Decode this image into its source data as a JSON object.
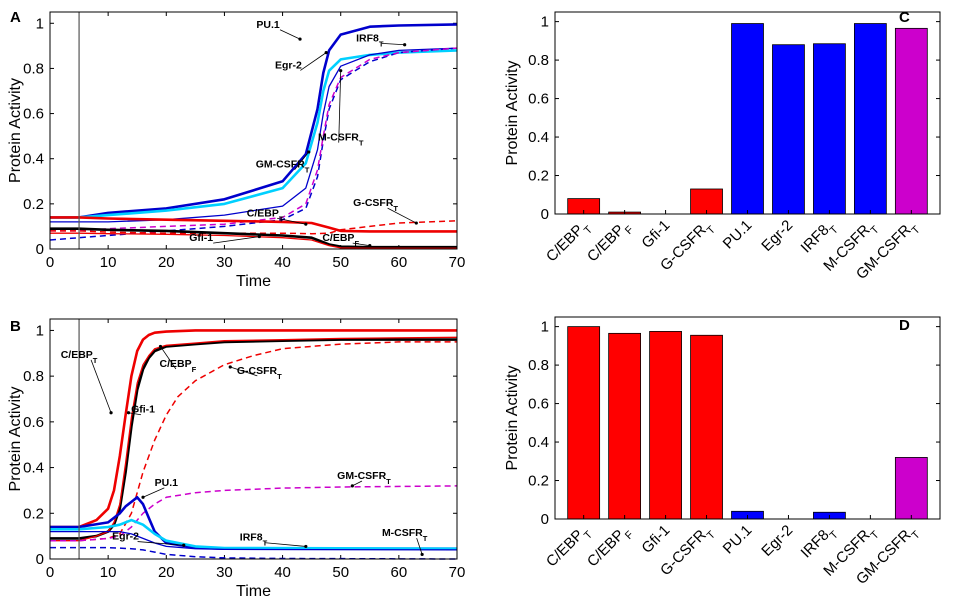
{
  "chart_data": [
    {
      "id": "A",
      "type": "line",
      "letter": "A",
      "xlabel": "Time",
      "ylabel": "Protein Activity",
      "xlim": [
        0,
        70
      ],
      "ylim": [
        0,
        1.05
      ],
      "xticks": [
        "0",
        "10",
        "20",
        "30",
        "40",
        "50",
        "60",
        "70"
      ],
      "yticks": [
        "0",
        "0.2",
        "0.4",
        "0.6",
        "0.8",
        "1"
      ],
      "stimulus_time": 5,
      "series": [
        {
          "name": "PU.1",
          "color": "#0000cc",
          "dash": false,
          "x": [
            0,
            5,
            10,
            20,
            30,
            40,
            44,
            46,
            47,
            48,
            50,
            55,
            60,
            70
          ],
          "y": [
            0.14,
            0.14,
            0.16,
            0.18,
            0.22,
            0.3,
            0.42,
            0.62,
            0.78,
            0.88,
            0.95,
            0.985,
            0.99,
            0.995
          ]
        },
        {
          "name": "Egr-2",
          "color": "#00d0ff",
          "dash": false,
          "x": [
            0,
            5,
            10,
            20,
            30,
            40,
            44,
            46,
            47,
            48,
            50,
            55,
            60,
            70
          ],
          "y": [
            0.14,
            0.14,
            0.15,
            0.17,
            0.2,
            0.27,
            0.38,
            0.56,
            0.7,
            0.79,
            0.84,
            0.86,
            0.87,
            0.88
          ]
        },
        {
          "name": "IRF8_T",
          "color": "#0000cc",
          "dash": false,
          "thin": true,
          "x": [
            0,
            5,
            10,
            20,
            30,
            40,
            44,
            46,
            47,
            48,
            50,
            55,
            60,
            70
          ],
          "y": [
            0.12,
            0.12,
            0.12,
            0.13,
            0.15,
            0.19,
            0.27,
            0.44,
            0.6,
            0.72,
            0.81,
            0.86,
            0.88,
            0.89
          ]
        },
        {
          "name": "M-CSFR_T",
          "color": "#0000cc",
          "dash": true,
          "x": [
            0,
            5,
            10,
            20,
            30,
            40,
            44,
            46,
            47,
            48,
            50,
            55,
            60,
            70
          ],
          "y": [
            0.04,
            0.05,
            0.06,
            0.08,
            0.1,
            0.13,
            0.18,
            0.32,
            0.48,
            0.62,
            0.75,
            0.83,
            0.87,
            0.89
          ]
        },
        {
          "name": "GM-CSFR_T",
          "color": "#cc00cc",
          "dash": true,
          "x": [
            0,
            5,
            10,
            20,
            30,
            40,
            44,
            46,
            47,
            48,
            50,
            55,
            60,
            70
          ],
          "y": [
            0.08,
            0.08,
            0.09,
            0.1,
            0.11,
            0.14,
            0.2,
            0.35,
            0.5,
            0.64,
            0.76,
            0.84,
            0.87,
            0.89
          ]
        },
        {
          "name": "C/EBP_T",
          "color": "#ee0000",
          "dash": false,
          "x": [
            0,
            5,
            10,
            20,
            30,
            40,
            45,
            48,
            50,
            55,
            70
          ],
          "y": [
            0.14,
            0.14,
            0.135,
            0.13,
            0.125,
            0.12,
            0.115,
            0.095,
            0.08,
            0.078,
            0.078
          ]
        },
        {
          "name": "G-CSFR_T",
          "color": "#ee0000",
          "dash": true,
          "x": [
            0,
            5,
            10,
            20,
            30,
            40,
            45,
            48,
            50,
            55,
            60,
            70
          ],
          "y": [
            0.08,
            0.08,
            0.075,
            0.07,
            0.07,
            0.07,
            0.068,
            0.07,
            0.085,
            0.1,
            0.115,
            0.125
          ]
        },
        {
          "name": "C/EBP_F",
          "color": "#000000",
          "dash": false,
          "x": [
            0,
            5,
            10,
            20,
            30,
            40,
            45,
            48,
            50,
            55,
            70
          ],
          "y": [
            0.09,
            0.09,
            0.085,
            0.08,
            0.07,
            0.06,
            0.05,
            0.02,
            0.01,
            0.008,
            0.008
          ]
        },
        {
          "name": "Gfi-1",
          "color": "#ee0000",
          "dash": false,
          "thin": true,
          "x": [
            0,
            5,
            10,
            20,
            30,
            40,
            45,
            48,
            50,
            55,
            70
          ],
          "y": [
            0.07,
            0.07,
            0.068,
            0.065,
            0.06,
            0.05,
            0.04,
            0.015,
            0.005,
            0.003,
            0.003
          ]
        }
      ],
      "annotations": [
        {
          "text": "PU.1",
          "sub": "",
          "x": 37.5,
          "y": 0.98,
          "ax": 43,
          "ay": 0.93
        },
        {
          "text": "IRF8",
          "sub": "T",
          "x": 55,
          "y": 0.92,
          "ax": 61,
          "ay": 0.905
        },
        {
          "text": "Egr-2",
          "sub": "",
          "x": 41,
          "y": 0.8,
          "ax": 47.5,
          "ay": 0.87
        },
        {
          "text": "M-CSFR",
          "sub": "T",
          "x": 50,
          "y": 0.48,
          "ax": 50,
          "ay": 0.79
        },
        {
          "text": "GM-CSFR",
          "sub": "T",
          "x": 40,
          "y": 0.36,
          "ax": 44.5,
          "ay": 0.43
        },
        {
          "text": "C/EBP",
          "sub": "T",
          "x": 37,
          "y": 0.145,
          "ax": 44,
          "ay": 0.11
        },
        {
          "text": "G-CSFR",
          "sub": "T",
          "x": 56,
          "y": 0.19,
          "ax": 63,
          "ay": 0.115
        },
        {
          "text": "Gfi-1",
          "sub": "",
          "x": 26,
          "y": 0.035,
          "ax": 36,
          "ay": 0.055
        },
        {
          "text": "C/EBP",
          "sub": "F",
          "x": 50,
          "y": 0.035,
          "ax": 55,
          "ay": 0.015
        }
      ]
    },
    {
      "id": "B",
      "type": "line",
      "letter": "B",
      "xlabel": "Time",
      "ylabel": "Protein Activity",
      "xlim": [
        0,
        70
      ],
      "ylim": [
        0,
        1.05
      ],
      "xticks": [
        "0",
        "10",
        "20",
        "30",
        "40",
        "50",
        "60",
        "70"
      ],
      "yticks": [
        "0",
        "0.2",
        "0.4",
        "0.6",
        "0.8",
        "1"
      ],
      "stimulus_time": 5,
      "series": [
        {
          "name": "C/EBP_T",
          "color": "#ee0000",
          "dash": false,
          "x": [
            0,
            5,
            8,
            10,
            11,
            12,
            13,
            14,
            15,
            16,
            17,
            18,
            20,
            25,
            70
          ],
          "y": [
            0.14,
            0.14,
            0.17,
            0.22,
            0.3,
            0.45,
            0.63,
            0.8,
            0.91,
            0.96,
            0.98,
            0.99,
            0.995,
            1.0,
            1.0
          ]
        },
        {
          "name": "C/EBP_F",
          "color": "#000000",
          "dash": false,
          "x": [
            0,
            5,
            8,
            10,
            11,
            12,
            13,
            14,
            15,
            16,
            17,
            18,
            20,
            25,
            30,
            40,
            50,
            70
          ],
          "y": [
            0.09,
            0.09,
            0.1,
            0.12,
            0.15,
            0.22,
            0.38,
            0.58,
            0.74,
            0.83,
            0.88,
            0.91,
            0.93,
            0.94,
            0.95,
            0.955,
            0.96,
            0.96
          ]
        },
        {
          "name": "Gfi-1",
          "color": "#ee0000",
          "dash": false,
          "thin": true,
          "x": [
            0,
            5,
            8,
            10,
            11,
            12,
            13,
            14,
            15,
            16,
            17,
            18,
            20,
            25,
            30,
            40,
            50,
            70
          ],
          "y": [
            0.08,
            0.08,
            0.1,
            0.12,
            0.16,
            0.24,
            0.42,
            0.62,
            0.77,
            0.85,
            0.89,
            0.92,
            0.935,
            0.945,
            0.955,
            0.96,
            0.965,
            0.97
          ]
        },
        {
          "name": "G-CSFR_T",
          "color": "#ee0000",
          "dash": true,
          "x": [
            0,
            5,
            10,
            12,
            14,
            16,
            18,
            20,
            22,
            25,
            30,
            35,
            40,
            50,
            60,
            70
          ],
          "y": [
            0.08,
            0.08,
            0.09,
            0.11,
            0.2,
            0.38,
            0.52,
            0.63,
            0.71,
            0.78,
            0.85,
            0.89,
            0.92,
            0.94,
            0.95,
            0.95
          ]
        },
        {
          "name": "GM-CSFR_T",
          "color": "#cc00cc",
          "dash": true,
          "x": [
            0,
            5,
            10,
            12,
            14,
            16,
            18,
            20,
            25,
            30,
            40,
            50,
            70
          ],
          "y": [
            0.08,
            0.08,
            0.09,
            0.1,
            0.14,
            0.2,
            0.24,
            0.27,
            0.29,
            0.3,
            0.31,
            0.315,
            0.32
          ]
        },
        {
          "name": "PU.1",
          "color": "#0000cc",
          "dash": false,
          "x": [
            0,
            5,
            10,
            12,
            13,
            14,
            15,
            16,
            17,
            18,
            20,
            25,
            30,
            70
          ],
          "y": [
            0.14,
            0.14,
            0.16,
            0.2,
            0.23,
            0.25,
            0.27,
            0.24,
            0.18,
            0.12,
            0.07,
            0.05,
            0.045,
            0.045
          ]
        },
        {
          "name": "Egr-2",
          "color": "#00d0ff",
          "dash": false,
          "x": [
            0,
            5,
            10,
            12,
            14,
            16,
            18,
            20,
            25,
            30,
            70
          ],
          "y": [
            0.13,
            0.13,
            0.14,
            0.15,
            0.17,
            0.15,
            0.11,
            0.08,
            0.055,
            0.048,
            0.045
          ]
        },
        {
          "name": "IRF8_T",
          "color": "#0000cc",
          "dash": false,
          "thin": true,
          "x": [
            0,
            5,
            10,
            12,
            14,
            16,
            18,
            20,
            25,
            30,
            70
          ],
          "y": [
            0.12,
            0.12,
            0.12,
            0.12,
            0.11,
            0.09,
            0.07,
            0.055,
            0.045,
            0.042,
            0.04
          ]
        },
        {
          "name": "M-CSFR_T",
          "color": "#0000cc",
          "dash": true,
          "x": [
            0,
            5,
            10,
            14,
            16,
            18,
            20,
            25,
            30,
            40,
            70
          ],
          "y": [
            0.05,
            0.05,
            0.05,
            0.045,
            0.04,
            0.03,
            0.02,
            0.01,
            0.005,
            0.002,
            0.0
          ]
        }
      ],
      "annotations": [
        {
          "text": "C/EBP",
          "sub": "T",
          "x": 5,
          "y": 0.88,
          "ax": 10.5,
          "ay": 0.64
        },
        {
          "text": "C/EBP",
          "sub": "F",
          "x": 22,
          "y": 0.84,
          "ax": 19,
          "ay": 0.93
        },
        {
          "text": "G-CSFR",
          "sub": "T",
          "x": 36,
          "y": 0.81,
          "ax": 31,
          "ay": 0.84
        },
        {
          "text": "Gfi-1",
          "sub": "",
          "x": 16,
          "y": 0.64,
          "ax": 13.5,
          "ay": 0.64
        },
        {
          "text": "PU.1",
          "sub": "",
          "x": 20,
          "y": 0.32,
          "ax": 16,
          "ay": 0.27
        },
        {
          "text": "GM-CSFR",
          "sub": "T",
          "x": 54,
          "y": 0.35,
          "ax": 52,
          "ay": 0.32
        },
        {
          "text": "Egr-2",
          "sub": "",
          "x": 13,
          "y": 0.085,
          "ax": 23,
          "ay": 0.06
        },
        {
          "text": "IRF8",
          "sub": "T",
          "x": 35,
          "y": 0.08,
          "ax": 44,
          "ay": 0.055
        },
        {
          "text": "M-CSFR",
          "sub": "T",
          "x": 61,
          "y": 0.1,
          "ax": 64,
          "ay": 0.02
        }
      ]
    },
    {
      "id": "C",
      "type": "bar",
      "letter": "C",
      "ylabel": "Protein Activity",
      "ylim": [
        0,
        1.05
      ],
      "yticks": [
        "0",
        "0.2",
        "0.4",
        "0.6",
        "0.8",
        "1"
      ],
      "categories": [
        {
          "main": "C/EBP",
          "sub": "T"
        },
        {
          "main": "C/EBP",
          "sub": "F"
        },
        {
          "main": "Gfi-1",
          "sub": ""
        },
        {
          "main": "G-CSFR",
          "sub": "T"
        },
        {
          "main": "PU.1",
          "sub": ""
        },
        {
          "main": "Egr-2",
          "sub": ""
        },
        {
          "main": "IRF8",
          "sub": "T"
        },
        {
          "main": "M-CSFR",
          "sub": "T"
        },
        {
          "main": "GM-CSFR",
          "sub": "T"
        }
      ],
      "values": [
        0.08,
        0.01,
        0.0,
        0.13,
        0.99,
        0.88,
        0.885,
        0.99,
        0.965
      ],
      "colors": [
        "#ff0000",
        "#ff0000",
        "#ff0000",
        "#ff0000",
        "#0000ff",
        "#0000ff",
        "#0000ff",
        "#0000ff",
        "#cc00cc"
      ]
    },
    {
      "id": "D",
      "type": "bar",
      "letter": "D",
      "ylabel": "Protein Activity",
      "ylim": [
        0,
        1.05
      ],
      "yticks": [
        "0",
        "0.2",
        "0.4",
        "0.6",
        "0.8",
        "1"
      ],
      "categories": [
        {
          "main": "C/EBP",
          "sub": "T"
        },
        {
          "main": "C/EBP",
          "sub": "F"
        },
        {
          "main": "Gfi-1",
          "sub": ""
        },
        {
          "main": "G-CSFR",
          "sub": "T"
        },
        {
          "main": "PU.1",
          "sub": ""
        },
        {
          "main": "Egr-2",
          "sub": ""
        },
        {
          "main": "IRF8",
          "sub": "T"
        },
        {
          "main": "M-CSFR",
          "sub": "T"
        },
        {
          "main": "GM-CSFR",
          "sub": "T"
        }
      ],
      "values": [
        1.0,
        0.965,
        0.975,
        0.955,
        0.04,
        0.0,
        0.035,
        0.0,
        0.32
      ],
      "colors": [
        "#ff0000",
        "#ff0000",
        "#ff0000",
        "#ff0000",
        "#0000ff",
        "#0000ff",
        "#0000ff",
        "#0000ff",
        "#cc00cc"
      ]
    }
  ]
}
